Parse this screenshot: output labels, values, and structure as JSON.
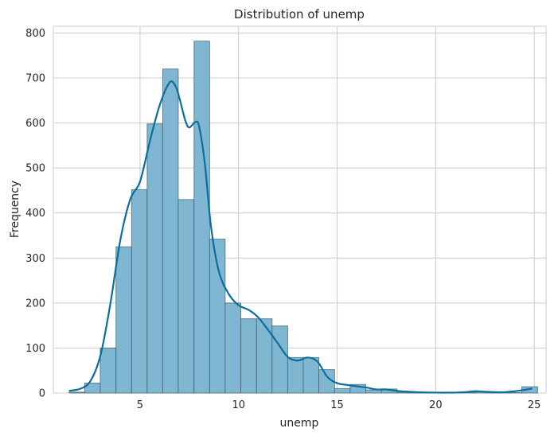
{
  "chart_data": {
    "type": "bar",
    "subtype": "histogram-with-kde",
    "title": "Distribution of unemp",
    "xlabel": "unemp",
    "ylabel": "Frequency",
    "xlim": [
      0.6,
      25.6
    ],
    "ylim": [
      0,
      815
    ],
    "xticks": [
      5,
      10,
      15,
      20,
      25
    ],
    "yticks": [
      0,
      100,
      200,
      300,
      400,
      500,
      600,
      700,
      800
    ],
    "grid": true,
    "bar_color": "#7fb7d2",
    "bar_edge_color": "#3f5866",
    "kde_color": "#0a6e9e",
    "bins": [
      {
        "x0": 1.4,
        "x1": 2.19,
        "count": 2
      },
      {
        "x0": 2.19,
        "x1": 2.98,
        "count": 22
      },
      {
        "x0": 2.98,
        "x1": 3.78,
        "count": 100
      },
      {
        "x0": 3.78,
        "x1": 4.57,
        "count": 325
      },
      {
        "x0": 4.57,
        "x1": 5.36,
        "count": 452
      },
      {
        "x0": 5.36,
        "x1": 6.15,
        "count": 598
      },
      {
        "x0": 6.15,
        "x1": 6.94,
        "count": 720
      },
      {
        "x0": 6.94,
        "x1": 7.74,
        "count": 430
      },
      {
        "x0": 7.74,
        "x1": 8.53,
        "count": 782
      },
      {
        "x0": 8.53,
        "x1": 9.32,
        "count": 342
      },
      {
        "x0": 9.32,
        "x1": 10.11,
        "count": 200
      },
      {
        "x0": 10.11,
        "x1": 10.91,
        "count": 165
      },
      {
        "x0": 10.91,
        "x1": 11.7,
        "count": 165
      },
      {
        "x0": 11.7,
        "x1": 12.49,
        "count": 149
      },
      {
        "x0": 12.49,
        "x1": 13.28,
        "count": 79
      },
      {
        "x0": 13.28,
        "x1": 14.07,
        "count": 79
      },
      {
        "x0": 14.07,
        "x1": 14.87,
        "count": 52
      },
      {
        "x0": 14.87,
        "x1": 15.66,
        "count": 10
      },
      {
        "x0": 15.66,
        "x1": 16.45,
        "count": 19
      },
      {
        "x0": 16.45,
        "x1": 17.24,
        "count": 7
      },
      {
        "x0": 17.24,
        "x1": 18.04,
        "count": 9
      },
      {
        "x0": 18.04,
        "x1": 18.83,
        "count": 2
      },
      {
        "x0": 18.83,
        "x1": 19.62,
        "count": 1
      },
      {
        "x0": 19.62,
        "x1": 20.41,
        "count": 1
      },
      {
        "x0": 20.41,
        "x1": 21.2,
        "count": 1
      },
      {
        "x0": 21.2,
        "x1": 22.0,
        "count": 2
      },
      {
        "x0": 22.0,
        "x1": 22.79,
        "count": 3
      },
      {
        "x0": 22.79,
        "x1": 23.58,
        "count": 1
      },
      {
        "x0": 23.58,
        "x1": 24.37,
        "count": 1
      },
      {
        "x0": 24.37,
        "x1": 25.17,
        "count": 14
      }
    ],
    "kde": {
      "x": [
        1.4,
        2.0,
        2.5,
        3.0,
        3.5,
        4.0,
        4.5,
        5.0,
        5.5,
        6.0,
        6.5,
        6.8,
        7.0,
        7.3,
        7.5,
        7.8,
        8.0,
        8.3,
        8.6,
        9.0,
        9.5,
        10.0,
        10.5,
        11.0,
        11.5,
        12.0,
        12.5,
        13.0,
        13.5,
        14.0,
        14.5,
        15.0,
        15.5,
        16.0,
        16.5,
        17.0,
        17.5,
        18.0,
        19.0,
        20.0,
        21.0,
        21.5,
        22.0,
        22.5,
        23.0,
        23.5,
        24.0,
        24.5,
        24.9
      ],
      "y": [
        5,
        10,
        28,
        85,
        200,
        340,
        430,
        470,
        560,
        640,
        690,
        682,
        655,
        605,
        590,
        602,
        592,
        505,
        370,
        270,
        220,
        195,
        185,
        168,
        140,
        110,
        80,
        72,
        79,
        70,
        36,
        22,
        18,
        15,
        12,
        8,
        8,
        5,
        2,
        1,
        1,
        2,
        4,
        3,
        2,
        2,
        4,
        7,
        10
      ]
    }
  }
}
